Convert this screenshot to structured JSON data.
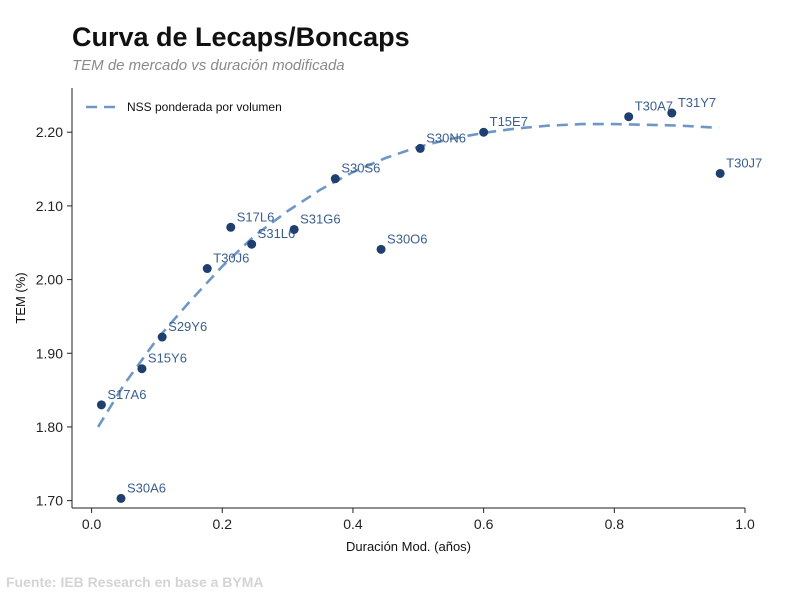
{
  "title": "Curva de Lecaps/Boncaps",
  "subtitle": "TEM de mercado vs duración modificada",
  "source": "Fuente: IEB Research en base a BYMA",
  "colors": {
    "point": "#1f3f6e",
    "label": "#3a5f8f",
    "curve": "#6f97c6",
    "axis": "#222222"
  },
  "chart_data": {
    "type": "scatter",
    "xlabel": "Duración Mod. (años)",
    "ylabel": "TEM (%)",
    "xlim": [
      -0.03,
      1.0
    ],
    "ylim": [
      1.69,
      2.26
    ],
    "xticks": [
      0.0,
      0.2,
      0.4,
      0.6,
      0.8,
      1.0
    ],
    "xtick_labels": [
      "0.0",
      "0.2",
      "0.4",
      "0.6",
      "0.8",
      "1.0"
    ],
    "yticks": [
      1.7,
      1.8,
      1.9,
      2.0,
      2.1,
      2.2
    ],
    "ytick_labels": [
      "1.70",
      "1.80",
      "1.90",
      "2.00",
      "2.10",
      "2.20"
    ],
    "grid": false,
    "legend": {
      "position": "top-left",
      "entries": [
        "NSS ponderada por volumen"
      ]
    },
    "points": [
      {
        "label": "S17A6",
        "x": 0.015,
        "y": 1.83
      },
      {
        "label": "S30A6",
        "x": 0.045,
        "y": 1.703
      },
      {
        "label": "S15Y6",
        "x": 0.077,
        "y": 1.879
      },
      {
        "label": "S29Y6",
        "x": 0.108,
        "y": 1.922
      },
      {
        "label": "T30J6",
        "x": 0.177,
        "y": 2.015
      },
      {
        "label": "S17L6",
        "x": 0.213,
        "y": 2.071
      },
      {
        "label": "S31L6",
        "x": 0.245,
        "y": 2.048
      },
      {
        "label": "S31G6",
        "x": 0.31,
        "y": 2.068
      },
      {
        "label": "S30S6",
        "x": 0.373,
        "y": 2.137
      },
      {
        "label": "S30O6",
        "x": 0.443,
        "y": 2.041
      },
      {
        "label": "S30N6",
        "x": 0.503,
        "y": 2.178
      },
      {
        "label": "T15E7",
        "x": 0.6,
        "y": 2.2
      },
      {
        "label": "T30A7",
        "x": 0.822,
        "y": 2.221
      },
      {
        "label": "T31Y7",
        "x": 0.888,
        "y": 2.226
      },
      {
        "label": "T30J7",
        "x": 0.962,
        "y": 2.144
      }
    ],
    "series": [
      {
        "name": "NSS ponderada por volumen",
        "x": [
          0.01,
          0.05,
          0.1,
          0.15,
          0.2,
          0.25,
          0.3,
          0.35,
          0.4,
          0.45,
          0.5,
          0.55,
          0.6,
          0.65,
          0.7,
          0.75,
          0.8,
          0.85,
          0.9,
          0.96
        ],
        "y": [
          1.8,
          1.858,
          1.919,
          1.97,
          2.018,
          2.06,
          2.093,
          2.122,
          2.146,
          2.165,
          2.18,
          2.191,
          2.199,
          2.205,
          2.209,
          2.211,
          2.211,
          2.21,
          2.209,
          2.206
        ]
      }
    ]
  }
}
